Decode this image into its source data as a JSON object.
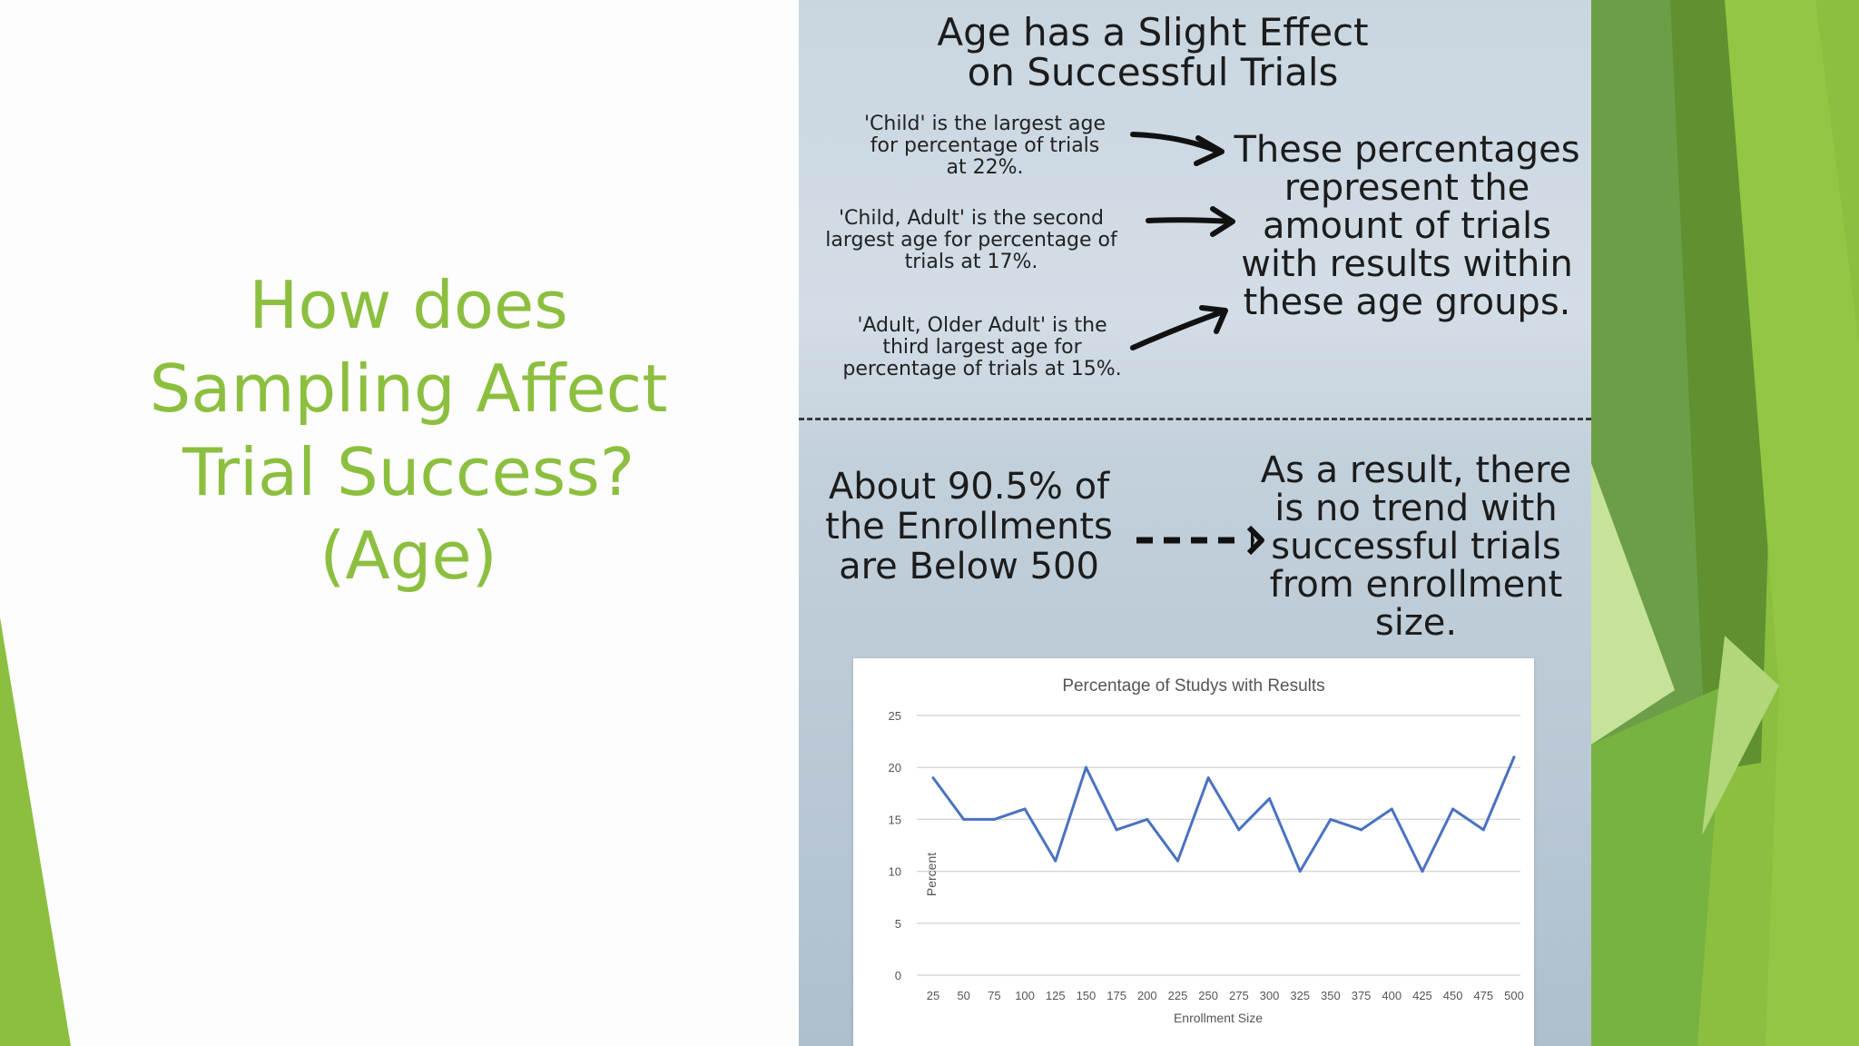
{
  "slide": {
    "title_lines": [
      "How does",
      "Sampling Affect",
      "Trial Success?",
      "(Age)"
    ],
    "accent_color": "#8cbf3f"
  },
  "infographic": {
    "title_lines": [
      "Age has a Slight Effect",
      "on Successful Trials"
    ],
    "notes": [
      [
        "'Child' is the largest age",
        "for percentage of trials",
        "at 22%."
      ],
      [
        "'Child, Adult' is the second",
        "largest age for percentage of",
        "trials at 17%."
      ],
      [
        "'Adult, Older Adult' is the",
        "third largest age for",
        "percentage of trials at 15%."
      ]
    ],
    "percentages_statement": [
      "These percentages",
      "represent the",
      "amount of trials",
      "with results within",
      "these age groups."
    ],
    "enrollment_statement": [
      "About 90.5% of",
      "the Enrollments",
      "are Below 500"
    ],
    "result_statement": [
      "As a result, there",
      "is no trend with",
      "successful trials",
      "from enrollment",
      "size."
    ]
  },
  "chart_data": {
    "type": "line",
    "title": "Percentage of Studys with Results",
    "xlabel": "Enrollment Size",
    "ylabel": "Percent",
    "x": [
      25,
      50,
      75,
      100,
      125,
      150,
      175,
      200,
      225,
      250,
      275,
      300,
      325,
      350,
      375,
      400,
      425,
      450,
      475,
      500
    ],
    "series": [
      {
        "values": [
          19,
          15,
          15,
          16,
          11,
          20,
          14,
          15,
          11,
          19,
          14,
          17,
          10,
          15,
          14,
          16,
          10,
          16,
          14,
          21
        ],
        "color": "#4a72c0"
      }
    ],
    "ylim": [
      0,
      25
    ],
    "yticks": [
      0,
      5,
      10,
      15,
      20,
      25
    ],
    "grid": true,
    "legend": "none"
  }
}
